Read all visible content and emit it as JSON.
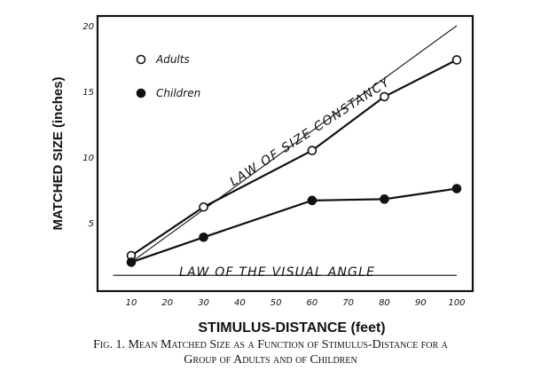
{
  "chart_data": {
    "type": "line",
    "ylabel": "MATCHED SIZE (inches)",
    "xlabel": "STIMULUS-DISTANCE (feet)",
    "x_ticks": [
      "10",
      "20",
      "30",
      "40",
      "50",
      "60",
      "70",
      "80",
      "90",
      "100"
    ],
    "y_ticks": [
      "5",
      "10",
      "15",
      "20"
    ],
    "xlim": [
      5,
      100
    ],
    "ylim": [
      0,
      20
    ],
    "grid": false,
    "legend_placement": "top-left",
    "series": [
      {
        "name": "Adults",
        "marker": "open-circle",
        "x": [
          10,
          30,
          60,
          80,
          100
        ],
        "y": [
          2.5,
          6.2,
          10.5,
          14.6,
          17.4
        ]
      },
      {
        "name": "Children",
        "marker": "filled-circle",
        "x": [
          10,
          30,
          60,
          80,
          100
        ],
        "y": [
          2.0,
          3.9,
          6.7,
          6.8,
          7.6
        ]
      }
    ],
    "reference_lines": [
      {
        "label": "LAW OF SIZE CONSTANCY",
        "x": [
          10,
          100
        ],
        "y": [
          2.0,
          20.0
        ]
      },
      {
        "label": "LAW OF THE VISUAL ANGLE",
        "x": [
          5,
          100
        ],
        "y": [
          1.0,
          1.0
        ]
      }
    ],
    "caption_line1": "Fig. 1. Mean Matched Size as a Function of Stimulus-Distance for a",
    "caption_line2": "Group of Adults and of Children"
  }
}
